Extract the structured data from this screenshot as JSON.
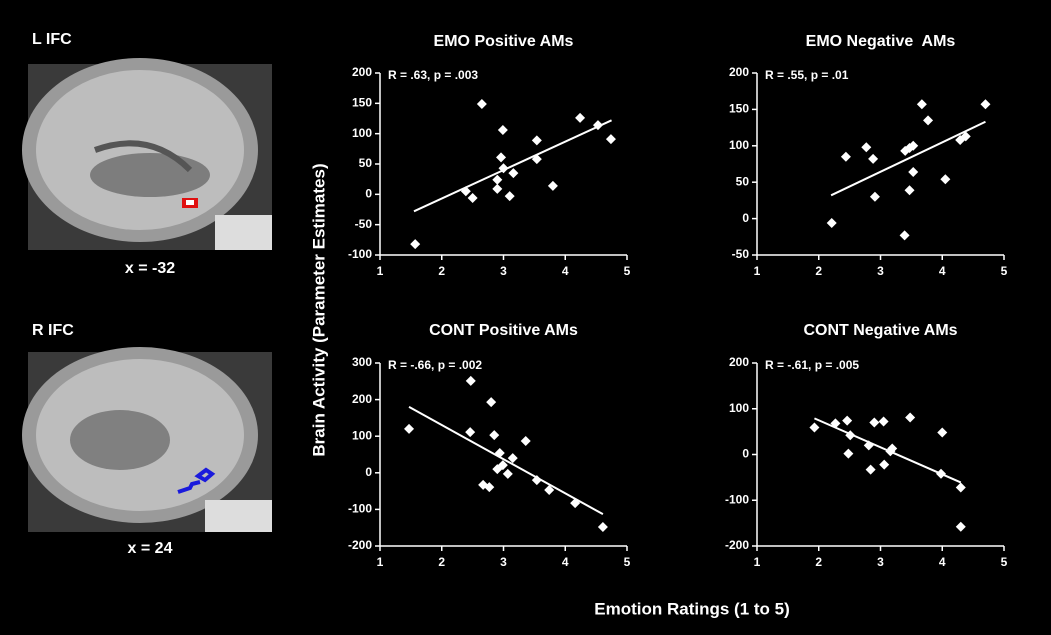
{
  "figure": {
    "ylabel": "Brain Activity (Parameter Estimates)",
    "xlabel": "Emotion Ratings (1 to 5)"
  },
  "brain_panels": [
    {
      "label": "L IFC",
      "caption": "x = -32"
    },
    {
      "label": "R IFC",
      "caption": "x = 24"
    }
  ],
  "chart_data": [
    {
      "type": "scatter",
      "title": "EMO Positive AMs",
      "annotation": "R = .63, p = .003",
      "color": "#ffffff",
      "x": [
        1.57,
        2.65,
        2.39,
        2.5,
        2.99,
        2.96,
        2.9,
        3.0,
        2.9,
        3.16,
        3.1,
        3.54,
        3.54,
        3.8,
        4.24,
        4.53,
        4.74
      ],
      "values": [
        -82,
        149,
        5,
        -6,
        106,
        61,
        24,
        43,
        9,
        35,
        -3,
        89,
        58,
        14,
        126,
        114,
        91
      ],
      "trend_line": {
        "x": [
          1.55,
          4.75
        ],
        "y": [
          -28,
          122
        ]
      },
      "xlim": [
        1,
        5
      ],
      "xticks": [
        1,
        2,
        3,
        4,
        5
      ],
      "ylim": [
        -100,
        200
      ],
      "yticks": [
        -100,
        -50,
        0,
        50,
        100,
        150,
        200
      ]
    },
    {
      "type": "scatter",
      "title": "EMO Negative  AMs",
      "annotation": "R = .55, p = .01",
      "color": "#ffffff",
      "x": [
        2.21,
        2.44,
        2.77,
        2.88,
        2.91,
        3.39,
        3.4,
        3.47,
        3.53,
        3.47,
        3.53,
        3.67,
        3.77,
        4.05,
        4.29,
        4.38,
        4.7
      ],
      "values": [
        -6,
        85,
        98,
        82,
        30,
        -23,
        93,
        97,
        100,
        39,
        64,
        157,
        135,
        54,
        108,
        113,
        157
      ],
      "trend_line": {
        "x": [
          2.2,
          4.7
        ],
        "y": [
          32,
          133
        ]
      },
      "xlim": [
        1,
        5
      ],
      "xticks": [
        1,
        2,
        3,
        4,
        5
      ],
      "ylim": [
        -50,
        200
      ],
      "yticks": [
        -50,
        0,
        50,
        100,
        150,
        200
      ]
    },
    {
      "type": "scatter",
      "title": "CONT Positive AMs",
      "annotation": "R = -.66, p = .002",
      "color": "#ffffff",
      "x": [
        1.47,
        2.47,
        2.46,
        2.8,
        2.85,
        2.94,
        2.9,
        2.67,
        2.77,
        2.99,
        3.07,
        3.15,
        3.36,
        3.54,
        3.74,
        4.16,
        4.61
      ],
      "values": [
        120,
        251,
        111,
        193,
        103,
        54,
        10,
        -33,
        -39,
        21,
        -3,
        40,
        87,
        -20,
        -47,
        -83,
        -148
      ],
      "trend_line": {
        "x": [
          1.47,
          4.61
        ],
        "y": [
          180,
          -113
        ]
      },
      "xlim": [
        1,
        5
      ],
      "xticks": [
        1,
        2,
        3,
        4,
        5
      ],
      "ylim": [
        -200,
        300
      ],
      "yticks": [
        -200,
        -100,
        0,
        100,
        200,
        300
      ]
    },
    {
      "type": "scatter",
      "title": "CONT Negative AMs",
      "annotation": "R = -.61, p = .005",
      "color": "#ffffff",
      "x": [
        1.93,
        2.27,
        2.46,
        2.51,
        2.48,
        2.81,
        2.9,
        3.05,
        2.84,
        3.06,
        3.19,
        3.16,
        3.48,
        4.0,
        3.98,
        4.3,
        4.3
      ],
      "values": [
        59,
        68,
        74,
        42,
        2,
        20,
        70,
        72,
        -33,
        -22,
        13,
        7,
        81,
        48,
        -42,
        -158,
        -72
      ],
      "trend_line": {
        "x": [
          1.93,
          4.3
        ],
        "y": [
          79,
          -61
        ]
      },
      "xlim": [
        1,
        5
      ],
      "xticks": [
        1,
        2,
        3,
        4,
        5
      ],
      "ylim": [
        -200,
        200
      ],
      "yticks": [
        -200,
        -100,
        0,
        100,
        200
      ]
    }
  ]
}
